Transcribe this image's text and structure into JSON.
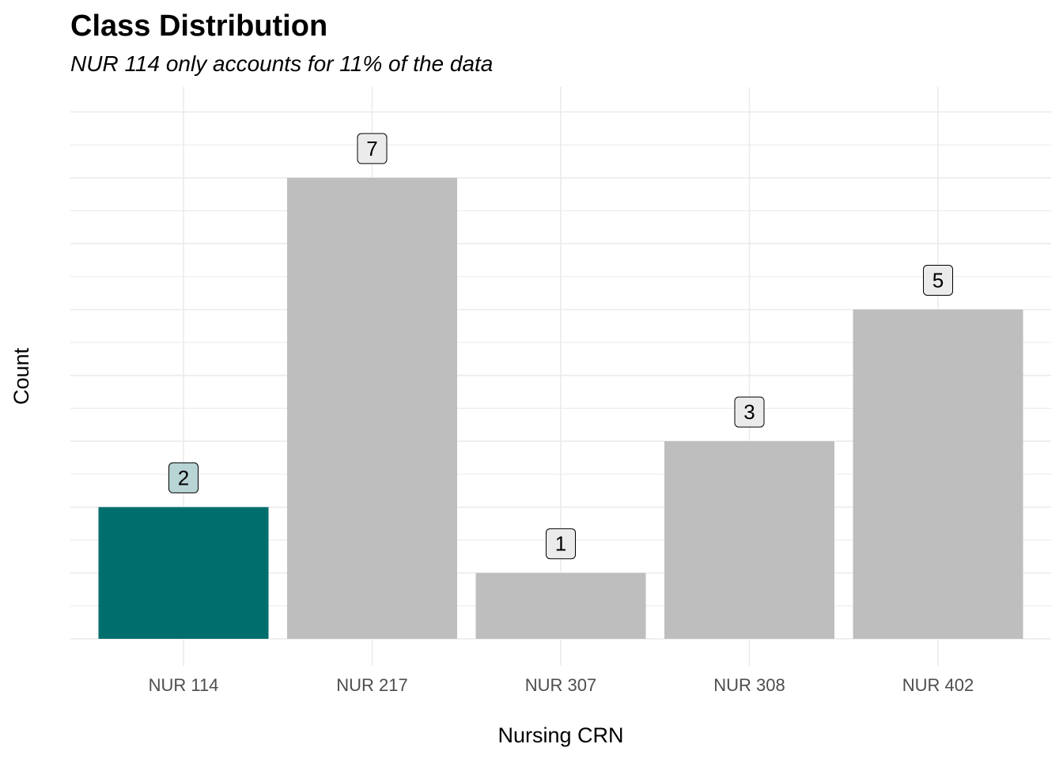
{
  "chart_data": {
    "type": "bar",
    "title": "Class Distribution",
    "subtitle": "NUR 114 only accounts for 11% of the data",
    "xlabel": "Nursing CRN",
    "ylabel": "Count",
    "categories": [
      "NUR 114",
      "NUR 217",
      "NUR 307",
      "NUR 308",
      "NUR 402"
    ],
    "values": [
      2,
      7,
      1,
      3,
      5
    ],
    "highlight_category": "NUR 114",
    "colors": {
      "highlight_bar": "#006e6d",
      "default_bar": "#bebebe",
      "highlight_label_fill": "#b8d4d4",
      "default_label_fill": "#ebebeb",
      "grid": "#ebebeb"
    },
    "ylim": [
      0,
      8
    ],
    "grid": true,
    "y_tick_labels_shown": false,
    "legend": "none"
  }
}
